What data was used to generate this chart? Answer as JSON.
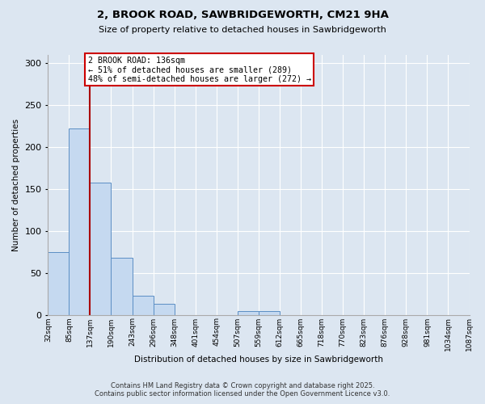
{
  "title1": "2, BROOK ROAD, SAWBRIDGEWORTH, CM21 9HA",
  "title2": "Size of property relative to detached houses in Sawbridgeworth",
  "xlabel": "Distribution of detached houses by size in Sawbridgeworth",
  "ylabel": "Number of detached properties",
  "bar_values": [
    75,
    222,
    157,
    68,
    23,
    13,
    0,
    0,
    0,
    4,
    4,
    0,
    0,
    0,
    0,
    0,
    0,
    0,
    0,
    0
  ],
  "bin_labels": [
    "32sqm",
    "85sqm",
    "137sqm",
    "190sqm",
    "243sqm",
    "296sqm",
    "348sqm",
    "401sqm",
    "454sqm",
    "507sqm",
    "559sqm",
    "612sqm",
    "665sqm",
    "718sqm",
    "770sqm",
    "823sqm",
    "876sqm",
    "928sqm",
    "981sqm",
    "1034sqm",
    "1087sqm"
  ],
  "bar_color": "#c5d9f0",
  "bar_edge_color": "#5b8ec4",
  "background_color": "#dce6f1",
  "grid_color": "#ffffff",
  "property_label": "2 BROOK ROAD: 136sqm",
  "annotation_line1": "← 51% of detached houses are smaller (289)",
  "annotation_line2": "48% of semi-detached houses are larger (272) →",
  "red_line_color": "#aa0000",
  "annotation_box_color": "#ffffff",
  "annotation_box_edge": "#cc0000",
  "ylim": [
    0,
    310
  ],
  "yticks": [
    0,
    50,
    100,
    150,
    200,
    250,
    300
  ],
  "footer1": "Contains HM Land Registry data © Crown copyright and database right 2025.",
  "footer2": "Contains public sector information licensed under the Open Government Licence v3.0."
}
